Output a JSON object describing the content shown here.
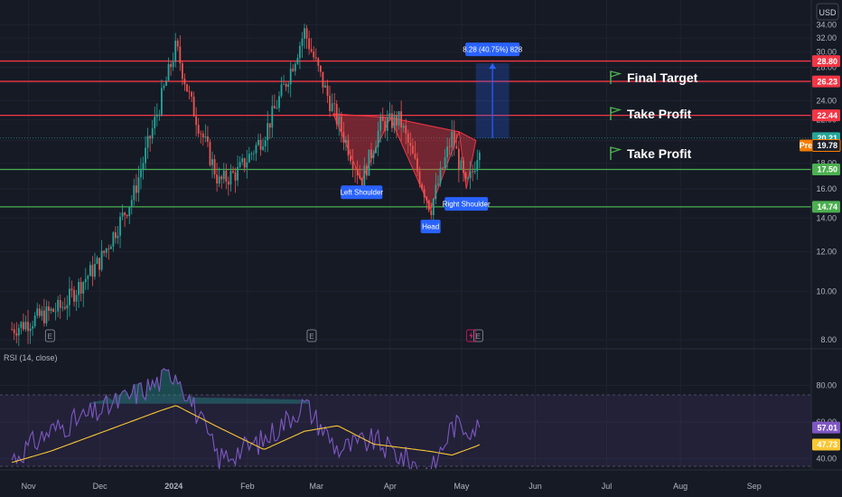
{
  "currency": "USD",
  "indicator_title": "RSI (14, close)",
  "targets": [
    {
      "label": "Final Target",
      "price": 28.8
    },
    {
      "label": "Take Profit",
      "price": 26.23
    },
    {
      "label": "Take Profit",
      "price": 22.44
    }
  ],
  "pattern_labels": {
    "left": "Left Shoulder",
    "head": "Head",
    "right": "Right Shoulder"
  },
  "measure_label": "8.28 (40.75%) 828",
  "earnings_marker": "E",
  "colors": {
    "background": "#161a25",
    "up": "#26a69a",
    "down": "#ef5350",
    "resistance": "#f23645",
    "support": "#4caf50",
    "pattern_fill": "#f23645",
    "measure": "#2962ff",
    "rsi_line": "#7e57c2",
    "rsi_ma": "#f9c634",
    "pre_market": "#f57c00",
    "target_flag": "#4caf50"
  },
  "chart_data": [
    {
      "type": "candlestick",
      "x_ticks": [
        "Nov",
        "Dec",
        "2024",
        "Feb",
        "Mar",
        "Apr",
        "May",
        "Jun",
        "Jul",
        "Aug",
        "Sep"
      ],
      "y_ticks": [
        8.0,
        10.0,
        12.0,
        14.0,
        16.0,
        18.0,
        20.0,
        22.0,
        24.0,
        26.0,
        28.0,
        30.0,
        32.0,
        34.0
      ],
      "ylim": [
        8,
        34.8
      ],
      "scale": "log",
      "last_price": 20.21,
      "pre_market_label": "Pre",
      "pre_market_price": 19.78,
      "resistance_levels": [
        28.8,
        26.23,
        22.44
      ],
      "support_levels": [
        17.5,
        14.74
      ],
      "key_closes": [
        {
          "date": "2023-10-25",
          "price": 8.4
        },
        {
          "date": "2023-11-15",
          "price": 9.3
        },
        {
          "date": "2023-12-01",
          "price": 11.5
        },
        {
          "date": "2023-12-15",
          "price": 15.5
        },
        {
          "date": "2023-12-26",
          "price": 23.5
        },
        {
          "date": "2024-01-02",
          "price": 30.8
        },
        {
          "date": "2024-01-08",
          "price": 24.0
        },
        {
          "date": "2024-01-20",
          "price": 16.5
        },
        {
          "date": "2024-01-28",
          "price": 17.3
        },
        {
          "date": "2024-02-08",
          "price": 20.5
        },
        {
          "date": "2024-02-17",
          "price": 26.0
        },
        {
          "date": "2024-02-25",
          "price": 33.0
        },
        {
          "date": "2024-03-05",
          "price": 25.0
        },
        {
          "date": "2024-03-20",
          "price": 16.6
        },
        {
          "date": "2024-03-28",
          "price": 21.5
        },
        {
          "date": "2024-04-05",
          "price": 22.0
        },
        {
          "date": "2024-04-18",
          "price": 14.6
        },
        {
          "date": "2024-04-27",
          "price": 20.4
        },
        {
          "date": "2024-05-03",
          "price": 16.0
        },
        {
          "date": "2024-05-06",
          "price": 17.5
        },
        {
          "date": "2024-05-09",
          "price": 20.21
        }
      ]
    },
    {
      "type": "line",
      "name": "RSI (14, close)",
      "x_ticks": [
        "Nov",
        "Dec",
        "2024",
        "Feb",
        "Mar",
        "Apr",
        "May",
        "Jun",
        "Jul",
        "Aug",
        "Sep"
      ],
      "y_ticks": [
        40.0,
        60.0,
        80.0
      ],
      "upper_band": 70,
      "lower_band": 30,
      "last_rsi": 57.01,
      "last_ma": 47.73,
      "series": [
        {
          "date": "2023-10-25",
          "rsi": 40,
          "ma": 38
        },
        {
          "date": "2023-11-10",
          "rsi": 55,
          "ma": 44
        },
        {
          "date": "2023-12-01",
          "rsi": 66,
          "ma": 54
        },
        {
          "date": "2023-12-26",
          "rsi": 82,
          "ma": 66
        },
        {
          "date": "2024-01-02",
          "rsi": 88,
          "ma": 69
        },
        {
          "date": "2024-01-20",
          "rsi": 40,
          "ma": 57
        },
        {
          "date": "2024-02-08",
          "rsi": 50,
          "ma": 45
        },
        {
          "date": "2024-02-25",
          "rsi": 70,
          "ma": 55
        },
        {
          "date": "2024-03-10",
          "rsi": 45,
          "ma": 58
        },
        {
          "date": "2024-03-25",
          "rsi": 50,
          "ma": 48
        },
        {
          "date": "2024-04-18",
          "rsi": 32,
          "ma": 44
        },
        {
          "date": "2024-04-27",
          "rsi": 58,
          "ma": 42
        },
        {
          "date": "2024-05-09",
          "rsi": 57.01,
          "ma": 47.73
        }
      ]
    }
  ]
}
